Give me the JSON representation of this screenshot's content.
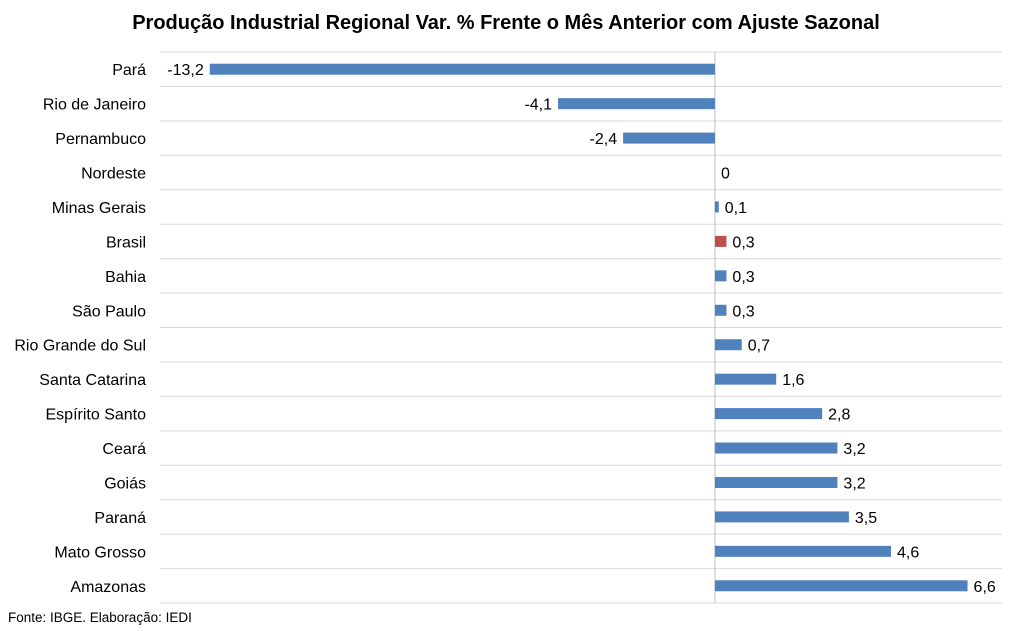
{
  "chart_data": {
    "type": "bar",
    "orientation": "horizontal",
    "title": "Produção Industrial Regional Var. % Frente o Mês Anterior com Ajuste Sazonal",
    "categories": [
      "Pará",
      "Rio de Janeiro",
      "Pernambuco",
      "Nordeste",
      "Minas Gerais",
      "Brasil",
      "Bahia",
      "São Paulo",
      "Rio Grande do Sul",
      "Santa Catarina",
      "Espírito Santo",
      "Ceará",
      "Goiás",
      "Paraná",
      "Mato Grosso",
      "Amazonas"
    ],
    "values": [
      -13.2,
      -4.1,
      -2.4,
      0,
      0.1,
      0.3,
      0.3,
      0.3,
      0.7,
      1.6,
      2.8,
      3.2,
      3.2,
      3.5,
      4.6,
      6.6
    ],
    "value_labels": [
      "-13,2",
      "-4,1",
      "-2,4",
      "0",
      "0,1",
      "0,3",
      "0,3",
      "0,3",
      "0,7",
      "1,6",
      "2,8",
      "3,2",
      "3,2",
      "3,5",
      "4,6",
      "6,6"
    ],
    "highlight_category": "Brasil",
    "xlim": [
      -14.5,
      7.5
    ],
    "grid": "horizontal",
    "legend": "none",
    "colors": {
      "bar": "#4f81bd",
      "highlight": "#c0504d",
      "grid": "#d9d9d9",
      "axis": "#bfbfbf"
    }
  },
  "source_note": "Fonte: IBGE. Elaboração: IEDI"
}
